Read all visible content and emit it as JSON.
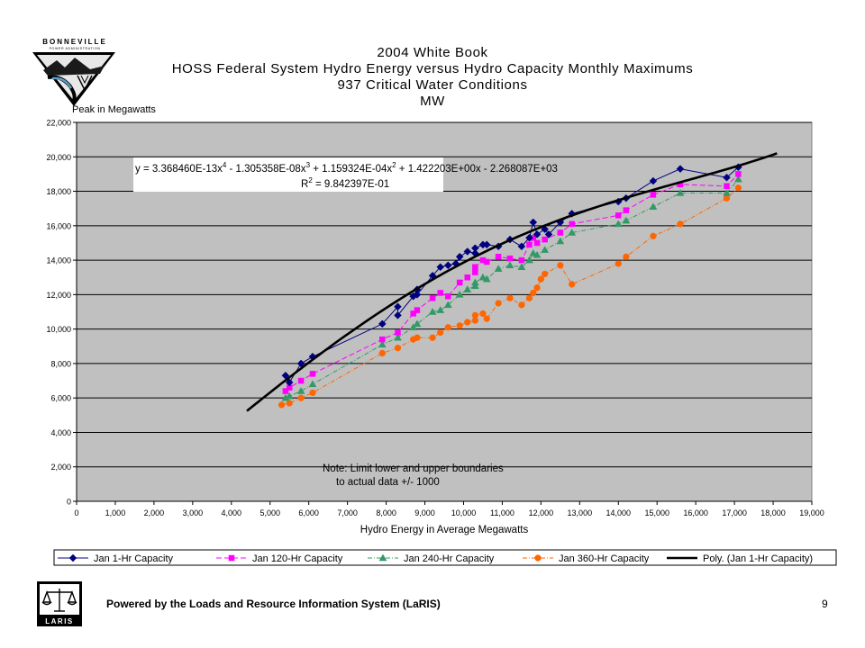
{
  "header": {
    "org_name": "BONNEVILLE",
    "org_subname": "POWER ADMINISTRATION",
    "title_line1": "2004 White Book",
    "title_line2": "HOSS Federal System Hydro Energy versus Hydro Capacity Monthly Maximums",
    "title_line3": "937 Critical Water Conditions",
    "title_line4": "MW"
  },
  "footer": {
    "text": "Powered by the Loads and Resource Information System (LaRIS)",
    "page_number": "9",
    "laris_logo_text": "LARIS"
  },
  "chart_data": {
    "type": "scatter",
    "ylabel": "Peak in Megawatts",
    "xlabel": "Hydro Energy in Average Megawatts",
    "xlim": [
      0,
      19000
    ],
    "ylim": [
      0,
      22000
    ],
    "x_ticks": [
      0,
      1000,
      2000,
      3000,
      4000,
      5000,
      6000,
      7000,
      8000,
      9000,
      10000,
      11000,
      12000,
      13000,
      14000,
      15000,
      16000,
      17000,
      18000,
      19000
    ],
    "y_ticks": [
      0,
      2000,
      4000,
      6000,
      8000,
      10000,
      12000,
      14000,
      16000,
      18000,
      20000,
      22000
    ],
    "x_tick_labels": [
      "0",
      "1,000",
      "2,000",
      "3,000",
      "4,000",
      "5,000",
      "6,000",
      "7,000",
      "8,000",
      "9,000",
      "10,000",
      "11,000",
      "12,000",
      "13,000",
      "14,000",
      "15,000",
      "16,000",
      "17,000",
      "18,000",
      "19,000"
    ],
    "y_tick_labels": [
      "0",
      "2,000",
      "4,000",
      "6,000",
      "8,000",
      "10,000",
      "12,000",
      "14,000",
      "16,000",
      "18,000",
      "20,000",
      "22,000"
    ],
    "grid": "horizontal",
    "plot_background": "#c0c0c0",
    "equation": {
      "line1_prefix": "y = 3.368460E-13x",
      "line1_exp1": "4",
      "line1_mid1": " - 1.305358E-08x",
      "line1_exp2": "3",
      "line1_mid2": " + 1.159324E-04x",
      "line1_exp3": "2",
      "line1_suffix": " + 1.422203E+00x - 2.268087E+03",
      "line2_prefix": "R",
      "line2_exp": "2",
      "line2_suffix": " = 9.842397E-01"
    },
    "note_line1": "Note: Limit  lower and upper boundaries",
    "note_line2": "to actual data +/- 1000",
    "legend_position": "bottom",
    "series": [
      {
        "name": "Jan 1-Hr Capacity",
        "color": "#000080",
        "marker": "diamond",
        "line": "solid",
        "points": [
          [
            5400,
            7300
          ],
          [
            5500,
            6900
          ],
          [
            5800,
            8000
          ],
          [
            6100,
            8400
          ],
          [
            7900,
            10300
          ],
          [
            8300,
            11300
          ],
          [
            8300,
            10800
          ],
          [
            8700,
            11900
          ],
          [
            8800,
            12300
          ],
          [
            8800,
            12000
          ],
          [
            9200,
            13100
          ],
          [
            9400,
            13600
          ],
          [
            9600,
            13700
          ],
          [
            9800,
            13800
          ],
          [
            9900,
            14200
          ],
          [
            10100,
            14500
          ],
          [
            10300,
            14400
          ],
          [
            10300,
            14700
          ],
          [
            10500,
            14900
          ],
          [
            10600,
            14900
          ],
          [
            10900,
            14800
          ],
          [
            11200,
            15200
          ],
          [
            11500,
            14800
          ],
          [
            11700,
            15300
          ],
          [
            11800,
            16200
          ],
          [
            11900,
            15500
          ],
          [
            12100,
            15800
          ],
          [
            12200,
            15500
          ],
          [
            12500,
            16200
          ],
          [
            12800,
            16700
          ],
          [
            14000,
            17400
          ],
          [
            14200,
            17600
          ],
          [
            14900,
            18600
          ],
          [
            15600,
            19300
          ],
          [
            16800,
            18800
          ],
          [
            17100,
            19400
          ]
        ]
      },
      {
        "name": "Jan 120-Hr Capacity",
        "color": "#ff00ff",
        "marker": "square",
        "line": "dash",
        "points": [
          [
            5400,
            6400
          ],
          [
            5500,
            6600
          ],
          [
            5800,
            7000
          ],
          [
            6100,
            7400
          ],
          [
            7900,
            9400
          ],
          [
            8300,
            9800
          ],
          [
            8700,
            10900
          ],
          [
            8800,
            11100
          ],
          [
            9200,
            11800
          ],
          [
            9400,
            12100
          ],
          [
            9600,
            11900
          ],
          [
            9900,
            12700
          ],
          [
            10100,
            13000
          ],
          [
            10300,
            13300
          ],
          [
            10300,
            13600
          ],
          [
            10500,
            14000
          ],
          [
            10600,
            13900
          ],
          [
            10900,
            14200
          ],
          [
            11200,
            14100
          ],
          [
            11500,
            14000
          ],
          [
            11700,
            14900
          ],
          [
            11800,
            15300
          ],
          [
            11900,
            15000
          ],
          [
            12100,
            15200
          ],
          [
            12500,
            15600
          ],
          [
            12800,
            16100
          ],
          [
            14000,
            16600
          ],
          [
            14200,
            16900
          ],
          [
            14900,
            17800
          ],
          [
            15600,
            18400
          ],
          [
            16800,
            18300
          ],
          [
            17100,
            19000
          ]
        ]
      },
      {
        "name": "Jan 240-Hr Capacity",
        "color": "#339966",
        "marker": "triangle",
        "line": "dashdot",
        "points": [
          [
            5400,
            6000
          ],
          [
            5500,
            6100
          ],
          [
            5800,
            6400
          ],
          [
            6100,
            6800
          ],
          [
            7900,
            9100
          ],
          [
            8300,
            9500
          ],
          [
            8700,
            10100
          ],
          [
            8800,
            10300
          ],
          [
            9200,
            11000
          ],
          [
            9400,
            11100
          ],
          [
            9600,
            11400
          ],
          [
            9900,
            12000
          ],
          [
            10100,
            12300
          ],
          [
            10300,
            12500
          ],
          [
            10300,
            12700
          ],
          [
            10500,
            13000
          ],
          [
            10600,
            12900
          ],
          [
            10900,
            13500
          ],
          [
            11200,
            13700
          ],
          [
            11500,
            13600
          ],
          [
            11700,
            14000
          ],
          [
            11800,
            14400
          ],
          [
            11900,
            14300
          ],
          [
            12100,
            14600
          ],
          [
            12500,
            15100
          ],
          [
            12800,
            15600
          ],
          [
            14000,
            16100
          ],
          [
            14200,
            16300
          ],
          [
            14900,
            17100
          ],
          [
            15600,
            17900
          ],
          [
            16800,
            17900
          ],
          [
            17100,
            18700
          ]
        ]
      },
      {
        "name": "Jan 360-Hr Capacity",
        "color": "#ff6600",
        "marker": "circle",
        "line": "dashdot",
        "points": [
          [
            5300,
            5600
          ],
          [
            5500,
            5700
          ],
          [
            5800,
            6000
          ],
          [
            6100,
            6300
          ],
          [
            7900,
            8600
          ],
          [
            8300,
            8900
          ],
          [
            8700,
            9400
          ],
          [
            8800,
            9500
          ],
          [
            9200,
            9500
          ],
          [
            9400,
            9800
          ],
          [
            9600,
            10100
          ],
          [
            9900,
            10200
          ],
          [
            10100,
            10400
          ],
          [
            10300,
            10500
          ],
          [
            10300,
            10800
          ],
          [
            10500,
            10900
          ],
          [
            10600,
            10600
          ],
          [
            10900,
            11500
          ],
          [
            11200,
            11800
          ],
          [
            11500,
            11400
          ],
          [
            11700,
            11800
          ],
          [
            11800,
            12100
          ],
          [
            11900,
            12400
          ],
          [
            12000,
            12900
          ],
          [
            12100,
            13200
          ],
          [
            12500,
            13700
          ],
          [
            12800,
            12600
          ],
          [
            14000,
            13800
          ],
          [
            14200,
            14200
          ],
          [
            14900,
            15400
          ],
          [
            15600,
            16100
          ],
          [
            16800,
            17600
          ],
          [
            17100,
            18200
          ]
        ]
      },
      {
        "name": "Poly. (Jan 1-Hr Capacity)",
        "color": "#000000",
        "marker": "none",
        "line": "trend",
        "coefficients": [
          -2268.087,
          1.422203,
          0.0001159324,
          -1.305358e-08,
          3.36846e-13
        ],
        "x_range": [
          4400,
          18100
        ]
      }
    ]
  }
}
